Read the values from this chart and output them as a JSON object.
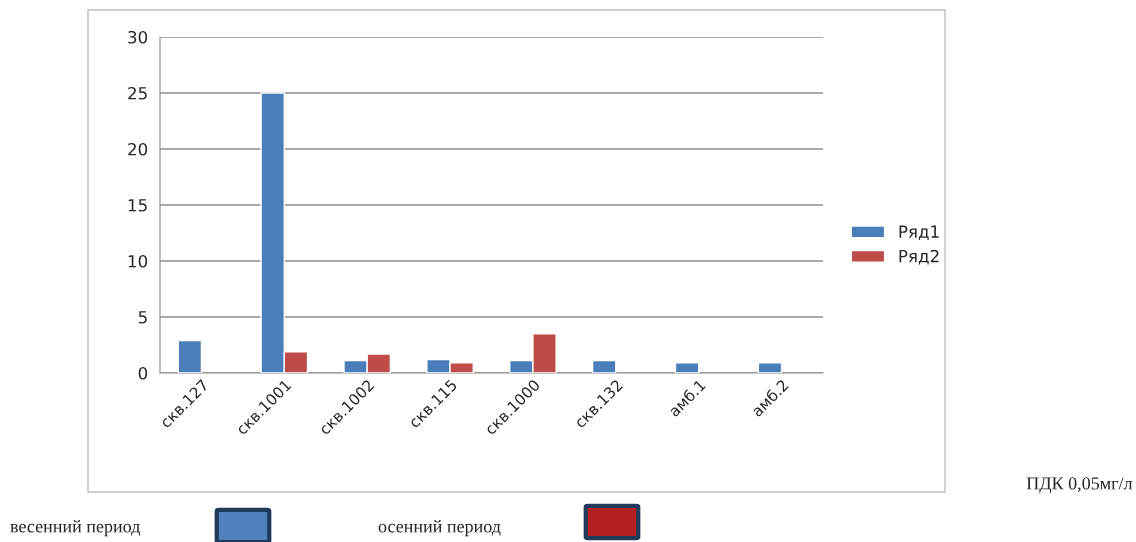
{
  "chart_data": {
    "type": "bar",
    "categories": [
      "скв.127",
      "скв.1001",
      "скв.1002",
      "скв.115",
      "скв.1000",
      "скв.132",
      "амб.1",
      "амб.2"
    ],
    "series": [
      {
        "name": "Ряд1",
        "color": "#4a7ebb",
        "values": [
          2.9,
          25,
          1.1,
          1.2,
          1.1,
          1.1,
          0.9,
          0.9
        ]
      },
      {
        "name": "Ряд2",
        "color": "#be4b48",
        "values": [
          null,
          1.9,
          1.7,
          0.9,
          3.5,
          null,
          null,
          null
        ]
      }
    ],
    "ylim": [
      0,
      30
    ],
    "yticks": [
      0,
      5,
      10,
      15,
      20,
      25,
      30
    ],
    "grid": "y",
    "legend": "right",
    "annotations": [
      "ПДК 0,05мг/л",
      "весенний период",
      "осенний период"
    ]
  }
}
